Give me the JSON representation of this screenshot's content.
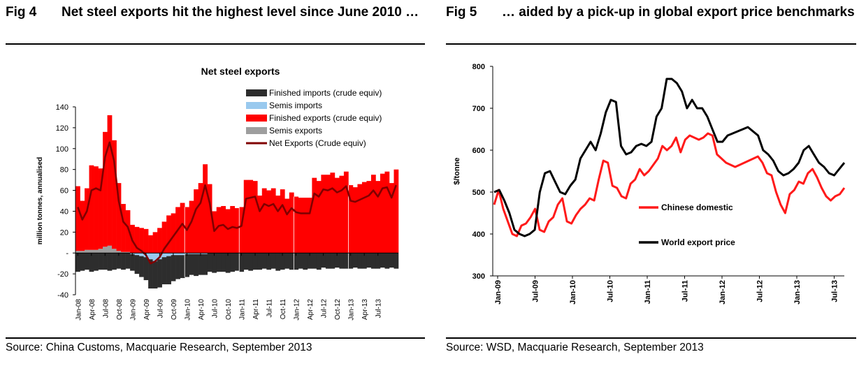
{
  "colors": {
    "finished_imports": "#2d2d2d",
    "semis_imports": "#99c9ee",
    "finished_exports": "#ff0000",
    "semis_exports": "#9e9e9e",
    "net_exports": "#800000",
    "chinese_domestic": "#ff1a1a",
    "world_export": "#000000"
  },
  "fig4": {
    "fig_label": "Fig 4",
    "title": "Net steel exports hit the highest level since June 2010 …",
    "source": "Source: China Customs, Macquarie Research, September 2013"
  },
  "fig5": {
    "fig_label": "Fig 5",
    "title": "… aided by a pick-up in global export price benchmarks",
    "source": "Source: WSD, Macquarie Research, September 2013"
  },
  "chart_data": [
    {
      "type": "bar",
      "title": "Net steel exports",
      "ylabel": "million tonnes, annualised",
      "xlabel": "",
      "ylim": [
        -40,
        140
      ],
      "yticks": [
        "140",
        "120",
        "100",
        "80",
        "60",
        "40",
        "20",
        "-",
        "-20",
        "-40"
      ],
      "xtick_labels": [
        "Jan-08",
        "Apr-08",
        "Jul-08",
        "Oct-08",
        "Jan-09",
        "Apr-09",
        "Jul-09",
        "Oct-09",
        "Jan-10",
        "Apr-10",
        "Jul-10",
        "Oct-10",
        "Jan-11",
        "Apr-11",
        "Jul-11",
        "Oct-11",
        "Jan-12",
        "Apr-12",
        "Jul-12",
        "Oct-12",
        "Jan-13",
        "Apr-13",
        "Jul-13"
      ],
      "legend": [
        "Finished imports (crude equiv)",
        "Semis imports",
        "Finished exports (crude equiv)",
        "Semis exports",
        "Net Exports (Crude equiv)"
      ],
      "legend_position": "top-right",
      "series": [
        {
          "name": "Finished exports (crude equiv)",
          "kind": "bar",
          "values": [
            62,
            48,
            59,
            81,
            80,
            77,
            110,
            125,
            104,
            65,
            46,
            40,
            27,
            25,
            24,
            23,
            17,
            20,
            24,
            30,
            36,
            38,
            44,
            48,
            44,
            50,
            61,
            67,
            85,
            66,
            40,
            44,
            45,
            42,
            45,
            43,
            44,
            70,
            70,
            69,
            55,
            62,
            60,
            62,
            55,
            61,
            52,
            58,
            54,
            53,
            53,
            53,
            72,
            69,
            75,
            75,
            77,
            72,
            74,
            78,
            65,
            63,
            66,
            68,
            69,
            75,
            69,
            76,
            78,
            67,
            80
          ]
        },
        {
          "name": "Semis exports",
          "kind": "bar",
          "values": [
            2,
            2,
            3,
            3,
            3,
            4,
            6,
            7,
            4,
            2,
            1,
            1,
            0,
            0,
            0,
            0,
            0,
            0,
            0,
            0,
            0,
            0,
            0,
            0,
            0,
            0,
            0,
            0,
            0,
            0,
            0,
            0,
            0,
            0,
            0,
            0,
            0,
            0,
            0,
            0,
            0,
            0,
            0,
            0,
            0,
            0,
            0,
            0,
            0,
            0,
            0,
            0,
            0,
            0,
            0,
            0,
            0,
            0,
            0,
            0,
            0,
            0,
            0,
            0,
            0,
            0,
            0,
            0,
            0,
            0,
            0
          ]
        },
        {
          "name": "Finished imports (crude equiv)",
          "kind": "bar",
          "values": [
            -18,
            -17,
            -16,
            -18,
            -17,
            -16,
            -16,
            -17,
            -16,
            -15,
            -16,
            -15,
            -16,
            -18,
            -20,
            -22,
            -28,
            -26,
            -27,
            -26,
            -27,
            -25,
            -23,
            -22,
            -22,
            -20,
            -21,
            -20,
            -20,
            -18,
            -19,
            -18,
            -18,
            -19,
            -18,
            -17,
            -18,
            -16,
            -17,
            -16,
            -16,
            -15,
            -16,
            -15,
            -17,
            -16,
            -15,
            -16,
            -16,
            -15,
            -16,
            -15,
            -15,
            -16,
            -14,
            -15,
            -15,
            -14,
            -15,
            -15,
            -15,
            -14,
            -15,
            -15,
            -14,
            -15,
            -15,
            -14,
            -15,
            -14,
            -15
          ]
        },
        {
          "name": "Semis imports",
          "kind": "bar",
          "values": [
            0,
            0,
            0,
            0,
            0,
            0,
            0,
            0,
            0,
            0,
            0,
            0,
            -1,
            -2,
            -3,
            -4,
            -6,
            -8,
            -6,
            -4,
            -3,
            -2,
            -2,
            -2,
            -1,
            -1,
            -1,
            -1,
            -1,
            0,
            0,
            0,
            0,
            0,
            0,
            0,
            0,
            0,
            0,
            0,
            0,
            0,
            0,
            0,
            0,
            0,
            0,
            0,
            0,
            0,
            0,
            0,
            0,
            0,
            0,
            0,
            0,
            0,
            0,
            0,
            0,
            0,
            0,
            0,
            0,
            0,
            0,
            0,
            0,
            0,
            0
          ]
        },
        {
          "name": "Net Exports (Crude equiv)",
          "kind": "line",
          "values": [
            44,
            32,
            40,
            60,
            62,
            60,
            92,
            106,
            88,
            50,
            30,
            25,
            12,
            5,
            2,
            -2,
            -10,
            -8,
            -4,
            4,
            10,
            16,
            22,
            28,
            22,
            30,
            42,
            48,
            65,
            48,
            21,
            26,
            27,
            23,
            25,
            24,
            26,
            52,
            53,
            54,
            40,
            47,
            45,
            47,
            40,
            46,
            37,
            43,
            39,
            38,
            38,
            38,
            57,
            54,
            61,
            60,
            62,
            58,
            60,
            64,
            50,
            49,
            51,
            53,
            55,
            60,
            54,
            62,
            63,
            53,
            65
          ]
        }
      ]
    },
    {
      "type": "line",
      "title": "",
      "ylabel": "$/tonne",
      "xlabel": "",
      "ylim": [
        300,
        800
      ],
      "yticks": [
        "800",
        "700",
        "600",
        "500",
        "400",
        "300"
      ],
      "xtick_labels": [
        "Jan-09",
        "Jul-09",
        "Jan-10",
        "Jul-10",
        "Jan-11",
        "Jul-11",
        "Jan-12",
        "Jul-12",
        "Jan-13",
        "Jul-13"
      ],
      "legend": [
        "Chinese domestic",
        "World export price"
      ],
      "series": [
        {
          "name": "Chinese domestic",
          "values": [
            470,
            505,
            460,
            430,
            400,
            395,
            420,
            425,
            440,
            460,
            410,
            405,
            430,
            440,
            470,
            485,
            430,
            425,
            445,
            460,
            470,
            485,
            480,
            530,
            575,
            570,
            515,
            510,
            490,
            485,
            520,
            530,
            555,
            540,
            550,
            565,
            580,
            610,
            600,
            610,
            630,
            595,
            625,
            635,
            630,
            625,
            630,
            640,
            635,
            590,
            580,
            570,
            565,
            560,
            565,
            570,
            575,
            580,
            585,
            570,
            545,
            540,
            500,
            470,
            450,
            495,
            505,
            525,
            520,
            545,
            555,
            535,
            510,
            490,
            480,
            490,
            495,
            510
          ]
        },
        {
          "name": "World export price",
          "values": [
            500,
            505,
            480,
            450,
            410,
            400,
            395,
            400,
            410,
            500,
            545,
            550,
            525,
            500,
            495,
            515,
            530,
            580,
            600,
            620,
            600,
            640,
            690,
            720,
            715,
            610,
            590,
            595,
            610,
            615,
            610,
            620,
            680,
            700,
            770,
            770,
            760,
            740,
            700,
            720,
            700,
            700,
            680,
            650,
            620,
            620,
            635,
            640,
            645,
            650,
            655,
            645,
            635,
            600,
            590,
            575,
            550,
            540,
            545,
            555,
            570,
            600,
            610,
            590,
            570,
            560,
            545,
            540,
            555,
            570
          ]
        }
      ]
    }
  ]
}
